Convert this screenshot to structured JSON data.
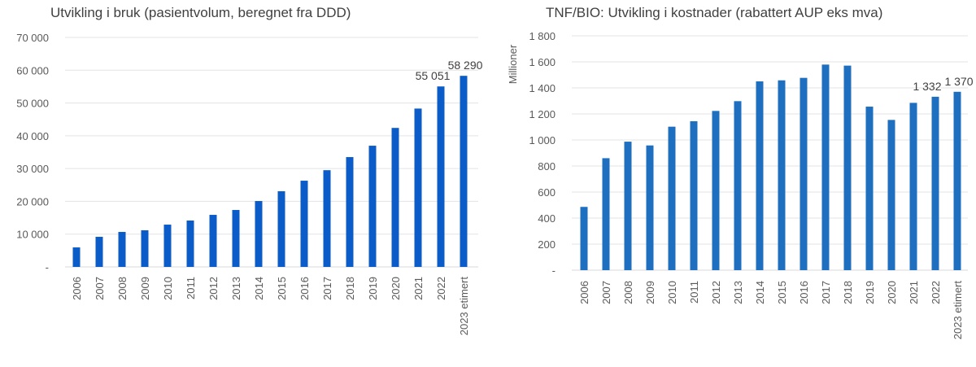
{
  "chart_data": [
    {
      "type": "bar",
      "title": "Utvikling i bruk (pasientvolum, beregnet fra DDD)",
      "xlabel": "",
      "ylabel": "",
      "categories": [
        "2006",
        "2007",
        "2008",
        "2009",
        "2010",
        "2011",
        "2012",
        "2013",
        "2014",
        "2015",
        "2016",
        "2017",
        "2018",
        "2019",
        "2020",
        "2021",
        "2022",
        "2023 etimert"
      ],
      "values": [
        5950,
        9180,
        10670,
        11170,
        12900,
        14150,
        15880,
        17370,
        20100,
        23080,
        26300,
        29500,
        33500,
        36970,
        42400,
        48300,
        55051,
        58290
      ],
      "ylim": [
        0,
        70000
      ],
      "yticks": [
        0,
        10000,
        20000,
        30000,
        40000,
        50000,
        60000,
        70000
      ],
      "ytick_labels": [
        "-",
        "10 000",
        "20 000",
        "30 000",
        "40 000",
        "50 000",
        "60 000",
        "70 000"
      ],
      "data_labels": [
        {
          "category": "2022",
          "text": "55 051"
        },
        {
          "category": "2023 etimert",
          "text": "58 290"
        }
      ],
      "grid": true,
      "color": "#0b5cc9"
    },
    {
      "type": "bar",
      "title": "TNF/BIO: Utvikling i kostnader (rabattert AUP eks mva)",
      "xlabel": "",
      "ylabel": "Millioner",
      "categories": [
        "2006",
        "2007",
        "2008",
        "2009",
        "2010",
        "2011",
        "2012",
        "2013",
        "2014",
        "2015",
        "2016",
        "2017",
        "2018",
        "2019",
        "2020",
        "2021",
        "2022",
        "2023 etimert"
      ],
      "values": [
        486,
        860,
        987,
        958,
        1102,
        1144,
        1223,
        1298,
        1450,
        1458,
        1477,
        1579,
        1571,
        1256,
        1154,
        1285,
        1332,
        1370
      ],
      "ylim": [
        0,
        1800
      ],
      "yticks": [
        0,
        200,
        400,
        600,
        800,
        1000,
        1200,
        1400,
        1600,
        1800
      ],
      "ytick_labels": [
        "-",
        "200",
        "400",
        "600",
        "800",
        "1 000",
        "1 200",
        "1 400",
        "1 600",
        "1 800"
      ],
      "data_labels": [
        {
          "category": "2022",
          "text": "1 332"
        },
        {
          "category": "2023 etimert",
          "text": "1 370"
        }
      ],
      "grid": true,
      "color": "#1f6fc0"
    }
  ]
}
